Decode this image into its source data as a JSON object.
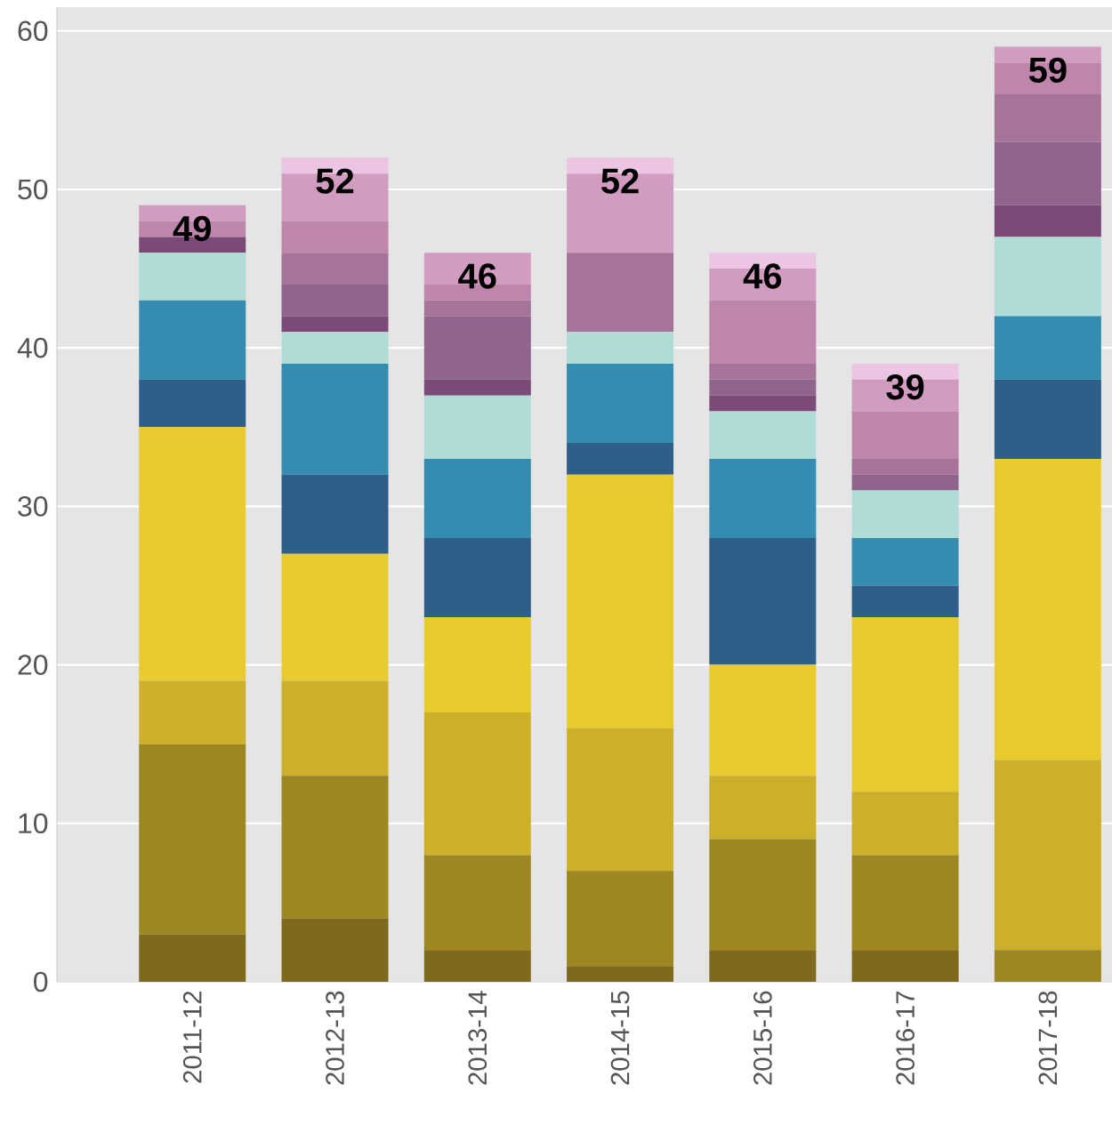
{
  "chart_data": {
    "type": "bar",
    "stacked": true,
    "categories": [
      "2011-12",
      "2012-13",
      "2013-14",
      "2014-15",
      "2015-16",
      "2016-17",
      "2017-18"
    ],
    "series": [
      {
        "color": "#7f6a1c",
        "values": [
          3,
          4,
          2,
          1,
          2,
          2,
          0
        ]
      },
      {
        "color": "#9e8620",
        "values": [
          12,
          9,
          6,
          6,
          7,
          6,
          2
        ]
      },
      {
        "color": "#ccb02a",
        "values": [
          4,
          6,
          9,
          9,
          4,
          4,
          12
        ]
      },
      {
        "color": "#eacb2f",
        "values": [
          16,
          8,
          6,
          16,
          7,
          11,
          19
        ]
      },
      {
        "color": "#2d5f8a",
        "values": [
          3,
          5,
          5,
          2,
          8,
          2,
          5
        ]
      },
      {
        "color": "#348cb0",
        "values": [
          5,
          7,
          5,
          5,
          5,
          3,
          4
        ]
      },
      {
        "color": "#afdcd6",
        "values": [
          3,
          2,
          4,
          2,
          3,
          3,
          5
        ]
      },
      {
        "color": "#7b4a76",
        "values": [
          1,
          1,
          1,
          0,
          1,
          0,
          2
        ]
      },
      {
        "color": "#91648e",
        "values": [
          0,
          2,
          4,
          0,
          1,
          1,
          4
        ]
      },
      {
        "color": "#a87399",
        "values": [
          0,
          2,
          1,
          5,
          1,
          1,
          3
        ]
      },
      {
        "color": "#bf86ab",
        "values": [
          1,
          2,
          1,
          0,
          4,
          3,
          2
        ]
      },
      {
        "color": "#d19cbf",
        "values": [
          1,
          3,
          2,
          5,
          2,
          2,
          1
        ]
      },
      {
        "color": "#ecc5e3",
        "values": [
          0,
          1,
          0,
          1,
          1,
          1,
          0
        ]
      }
    ],
    "totals": [
      "49",
      "52",
      "46",
      "52",
      "46",
      "39",
      "59"
    ],
    "ylim": [
      0,
      61.5
    ],
    "yticks": [
      0,
      10,
      20,
      30,
      40,
      50,
      60
    ],
    "grid": "y"
  }
}
